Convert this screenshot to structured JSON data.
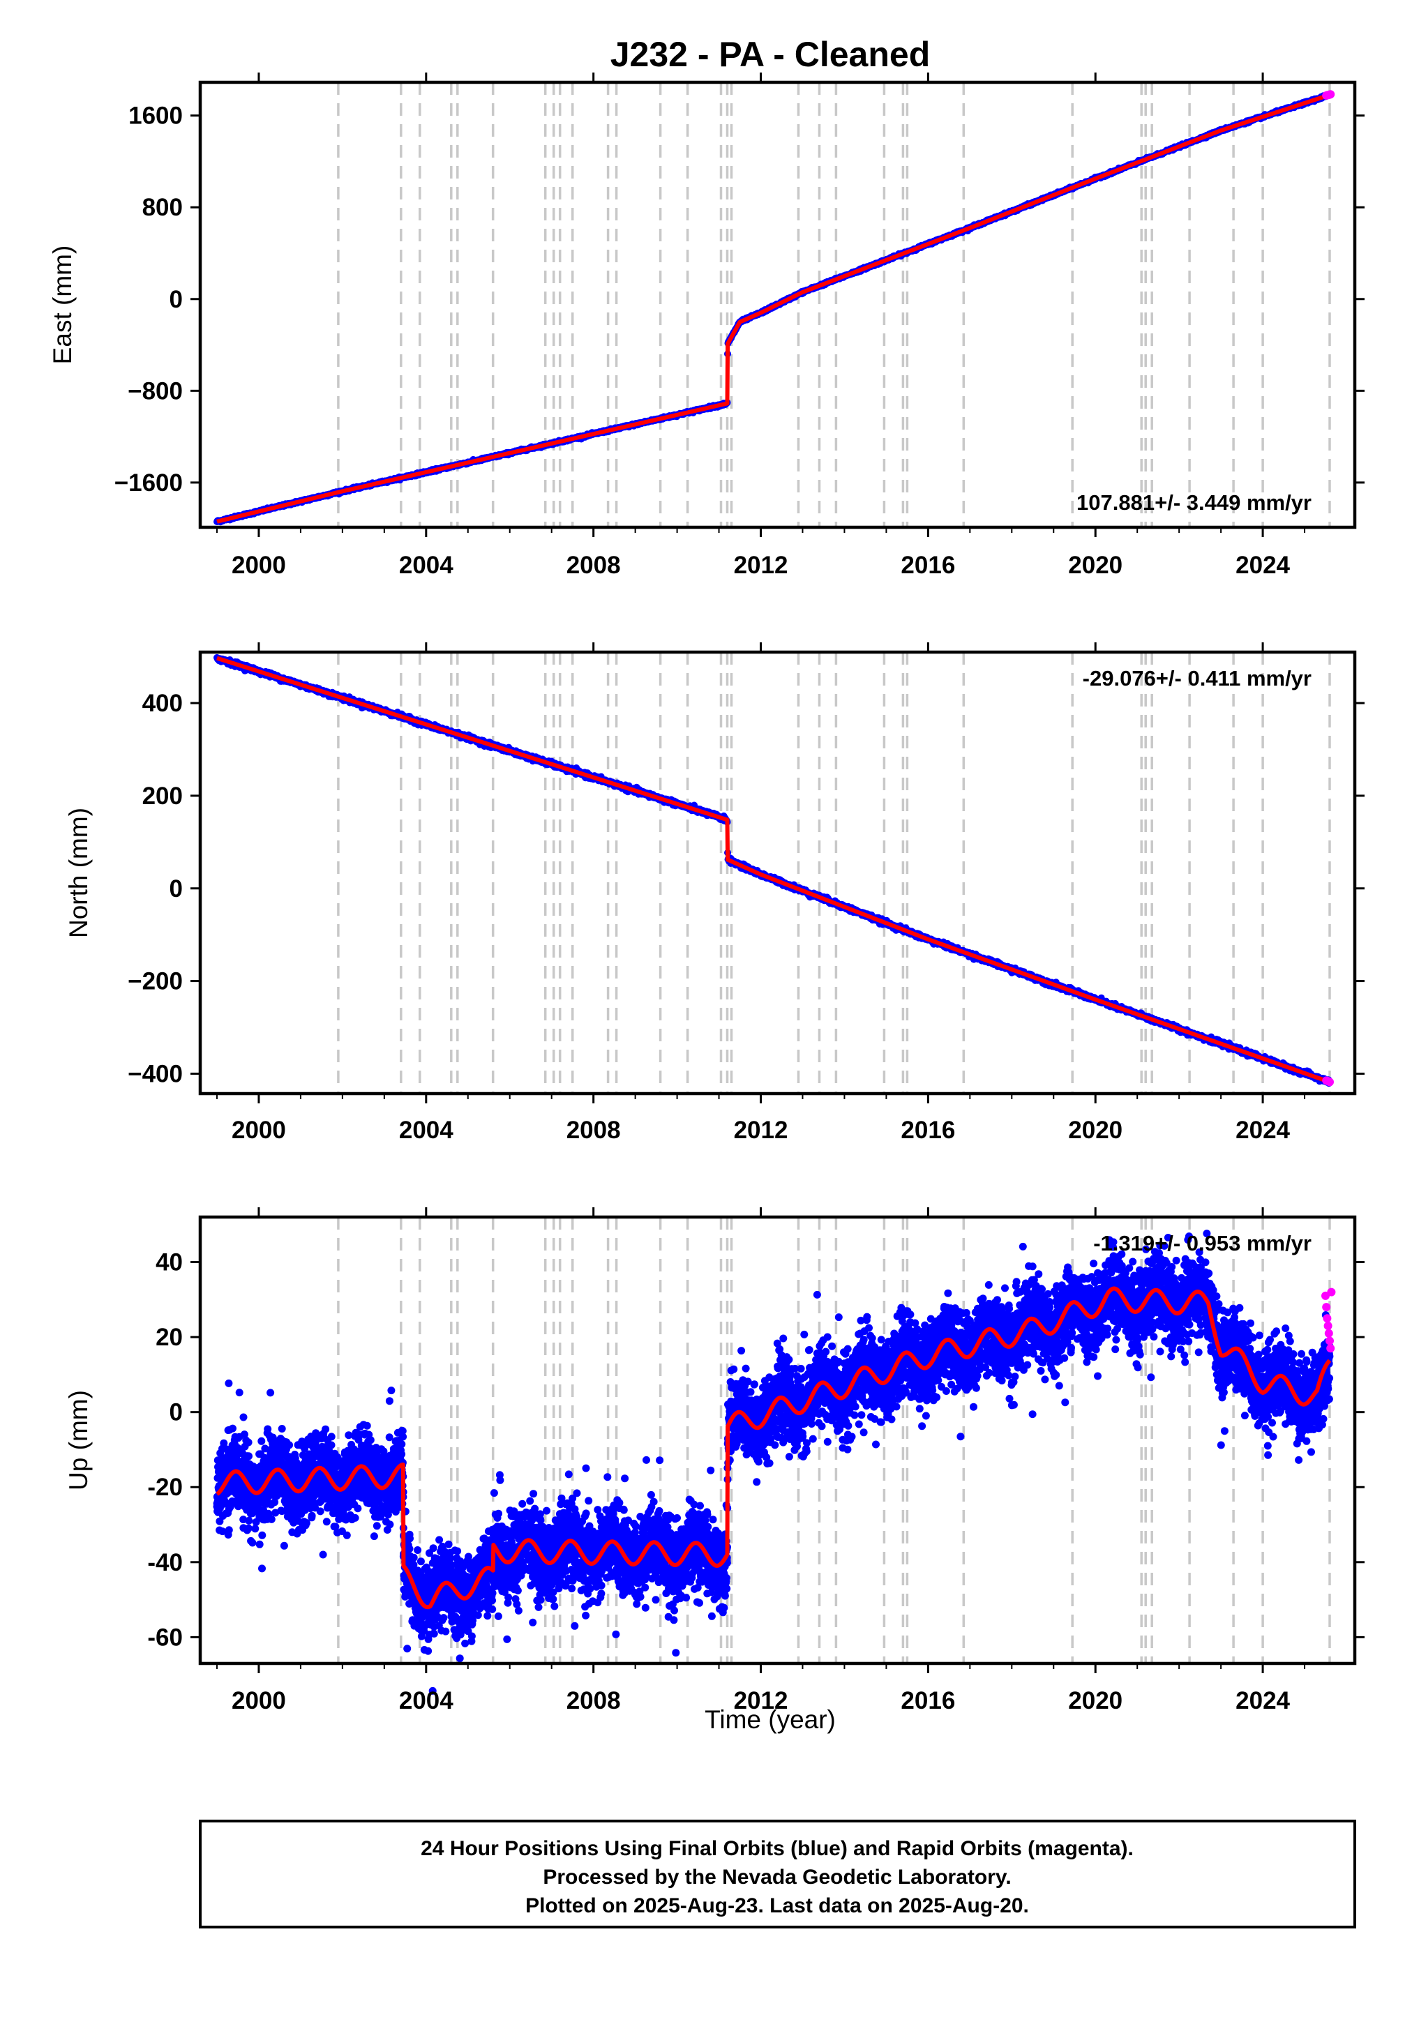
{
  "title": "J232  - PA - Cleaned",
  "footer": {
    "line1": "24 Hour Positions Using Final Orbits (blue) and Rapid Orbits (magenta).",
    "line2": "Processed by the Nevada Geodetic Laboratory.",
    "line3": "Plotted on 2025-Aug-23. Last data on 2025-Aug-20."
  },
  "colors": {
    "final_orbits": "#0000ff",
    "rapid_orbits": "#ff00ff",
    "model": "#ff0000",
    "event_lines": "#c8c8c8",
    "frame": "#000000"
  },
  "chart_data": [
    {
      "type": "scatter",
      "ylabel": "East (mm)",
      "xlabel": "",
      "xlim": [
        1998.6,
        2026.2
      ],
      "ylim": [
        -1990,
        1890
      ],
      "xticks": [
        2000,
        2004,
        2008,
        2012,
        2016,
        2020,
        2024
      ],
      "xtick_labels": [
        "2000",
        "2004",
        "2008",
        "2012",
        "2016",
        "2020",
        "2024"
      ],
      "yticks": [
        -1600,
        -800,
        0,
        800,
        1600
      ],
      "ytick_labels": [
        "−1600",
        "−800",
        "0",
        "800",
        "1600"
      ],
      "rate_label": "107.881+/- 3.449 mm/yr",
      "rate_position": "bottom-right",
      "model_x": [
        1999.0,
        2001.95,
        2011.2,
        2011.21,
        2011.5,
        2012,
        2013,
        2015,
        2017,
        2020,
        2023,
        2025.6
      ],
      "model_y": [
        -1940,
        -1680,
        -910,
        -390,
        -200,
        -120,
        60,
        340,
        620,
        1050,
        1470,
        1780
      ],
      "scatter_noise_mm": 5,
      "rapid_x": [
        2025.52,
        2025.55,
        2025.58,
        2025.6,
        2025.62
      ],
      "rapid_y": [
        1775,
        1778,
        1781,
        1783,
        1785
      ],
      "grid": false
    },
    {
      "type": "scatter",
      "ylabel": "North (mm)",
      "xlabel": "",
      "xlim": [
        1998.6,
        2026.2
      ],
      "ylim": [
        -443,
        510
      ],
      "xticks": [
        2000,
        2004,
        2008,
        2012,
        2016,
        2020,
        2024
      ],
      "xtick_labels": [
        "2000",
        "2004",
        "2008",
        "2012",
        "2016",
        "2020",
        "2024"
      ],
      "yticks": [
        -400,
        -200,
        0,
        200,
        400
      ],
      "ytick_labels": [
        "−400",
        "−200",
        "0",
        "200",
        "400"
      ],
      "rate_label": "-29.076+/- 0.411 mm/yr",
      "rate_position": "top-right",
      "model_x": [
        1999.0,
        2011.2,
        2011.21,
        2012,
        2016,
        2020,
        2025.6
      ],
      "model_y": [
        497,
        148,
        62,
        30,
        -110,
        -240,
        -418
      ],
      "scatter_noise_mm": 2.5,
      "rapid_x": [
        2025.52,
        2025.56,
        2025.6
      ],
      "rapid_y": [
        -415,
        -416,
        -418
      ],
      "grid": false
    },
    {
      "type": "scatter",
      "ylabel": "Up (mm)",
      "xlabel": "Time (year)",
      "xlim": [
        1998.6,
        2026.2
      ],
      "ylim": [
        -67,
        52
      ],
      "xticks": [
        2000,
        2004,
        2008,
        2012,
        2016,
        2020,
        2024
      ],
      "xtick_labels": [
        "2000",
        "2004",
        "2008",
        "2012",
        "2016",
        "2020",
        "2024"
      ],
      "yticks": [
        -60,
        -40,
        -20,
        0,
        20,
        40
      ],
      "ytick_labels": [
        "-60",
        "-40",
        "-20",
        "0",
        "20",
        "40"
      ],
      "rate_label": "-1.319+/- 0.953 mm/yr",
      "rate_position": "top-right",
      "model_x": [
        1999.0,
        2003.45,
        2003.46,
        2004.1,
        2005.6,
        2005.61,
        2011.2,
        2011.21,
        2012.5,
        2016,
        2018.5,
        2020.3,
        2022.7,
        2023.0,
        2024.0,
        2025.3,
        2025.6
      ],
      "model_y": [
        -19,
        -17,
        -44,
        -50,
        -44,
        -37,
        -38,
        -4,
        1,
        15,
        22,
        30,
        29,
        18,
        8,
        4,
        12
      ],
      "seasonal_amplitude_mm": 3,
      "scatter_noise_mm": 5,
      "rapid_x": [
        2025.5,
        2025.52,
        2025.54,
        2025.56,
        2025.58,
        2025.6,
        2025.62,
        2025.64
      ],
      "rapid_y": [
        31,
        28,
        25,
        23,
        21,
        19,
        17,
        32
      ],
      "grid": false
    }
  ],
  "event_lines_x": [
    2001.9,
    2003.4,
    2003.85,
    2004.6,
    2004.75,
    2005.6,
    2006.85,
    2007.05,
    2007.2,
    2007.5,
    2008.35,
    2008.55,
    2009.6,
    2010.25,
    2011.05,
    2011.2,
    2011.3,
    2012.9,
    2013.4,
    2013.8,
    2014.95,
    2015.4,
    2015.5,
    2016.85,
    2019.45,
    2021.1,
    2021.2,
    2021.35,
    2022.25,
    2023.3,
    2024.0,
    2025.6
  ]
}
